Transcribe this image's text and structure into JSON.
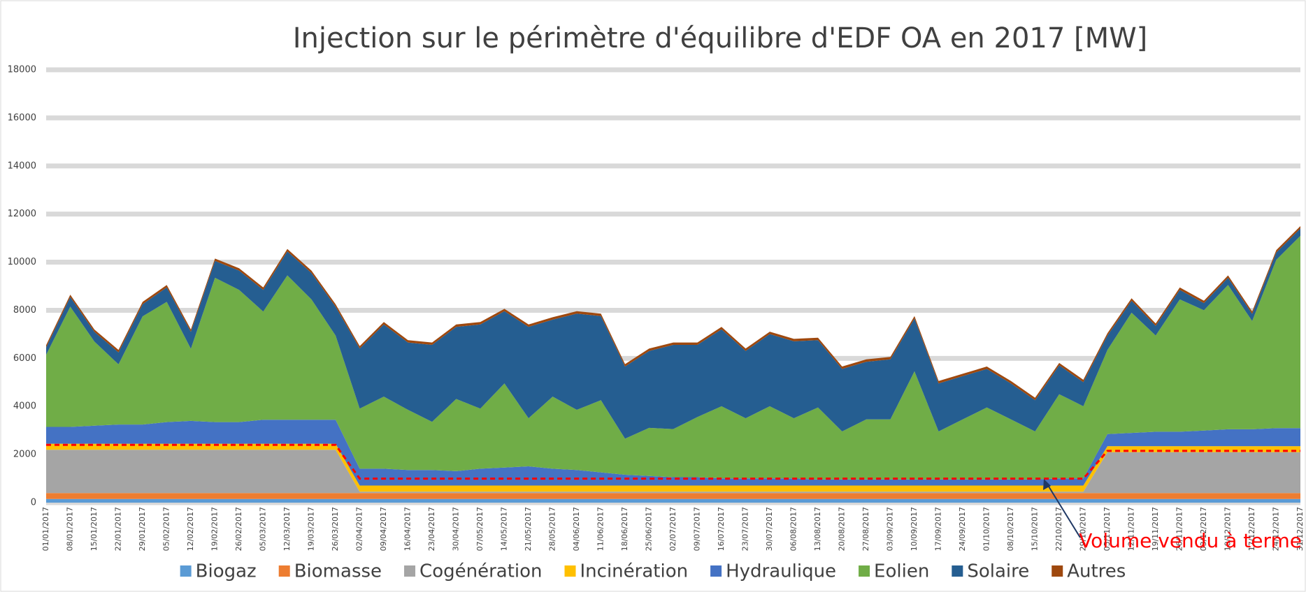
{
  "chart_data": {
    "type": "stacked_area",
    "title": "Injection sur le périmètre d'équilibre d'EDF OA en 2017 [MW]",
    "categories": [
      "01/01/2017",
      "08/01/2017",
      "15/01/2017",
      "22/01/2017",
      "29/01/2017",
      "05/02/2017",
      "12/02/2017",
      "19/02/2017",
      "26/02/2017",
      "05/03/2017",
      "12/03/2017",
      "19/03/2017",
      "26/03/2017",
      "02/04/2017",
      "09/04/2017",
      "16/04/2017",
      "23/04/2017",
      "30/04/2017",
      "07/05/2017",
      "14/05/2017",
      "21/05/2017",
      "28/05/2017",
      "04/06/2017",
      "11/06/2017",
      "18/06/2017",
      "25/06/2017",
      "02/07/2017",
      "09/07/2017",
      "16/07/2017",
      "23/07/2017",
      "30/07/2017",
      "06/08/2017",
      "13/08/2017",
      "20/08/2017",
      "27/08/2017",
      "03/09/2017",
      "10/09/2017",
      "17/09/2017",
      "24/09/2017",
      "01/10/2017",
      "08/10/2017",
      "15/10/2017",
      "22/10/2017",
      "29/10/2017",
      "05/11/2017",
      "12/11/2017",
      "19/11/2017",
      "26/11/2017",
      "03/12/2017",
      "10/12/2017",
      "17/12/2017",
      "24/12/2017",
      "31/12/2017"
    ],
    "series": [
      {
        "name": "Biogaz",
        "color": "#5b9bd5",
        "values": [
          150,
          150,
          150,
          150,
          150,
          150,
          150,
          150,
          150,
          150,
          150,
          150,
          150,
          150,
          150,
          150,
          150,
          150,
          150,
          150,
          150,
          150,
          150,
          150,
          150,
          150,
          150,
          150,
          150,
          150,
          150,
          150,
          150,
          150,
          150,
          150,
          150,
          150,
          150,
          150,
          150,
          150,
          150,
          150,
          150,
          150,
          150,
          150,
          150,
          150,
          150,
          150,
          150
        ]
      },
      {
        "name": "Biomasse",
        "color": "#ed7d31",
        "values": [
          250,
          250,
          250,
          250,
          250,
          250,
          250,
          250,
          250,
          250,
          250,
          250,
          250,
          250,
          250,
          250,
          250,
          250,
          250,
          250,
          250,
          250,
          250,
          250,
          250,
          250,
          250,
          250,
          250,
          250,
          250,
          250,
          250,
          250,
          250,
          250,
          250,
          250,
          250,
          250,
          250,
          250,
          250,
          250,
          250,
          250,
          250,
          250,
          250,
          250,
          250,
          250,
          250
        ]
      },
      {
        "name": "Cogénération",
        "color": "#a5a5a5",
        "values": [
          1800,
          1800,
          1800,
          1800,
          1800,
          1800,
          1800,
          1800,
          1800,
          1800,
          1800,
          1800,
          1800,
          60,
          60,
          60,
          60,
          60,
          60,
          60,
          60,
          60,
          60,
          60,
          60,
          60,
          60,
          60,
          60,
          60,
          60,
          60,
          60,
          60,
          60,
          60,
          60,
          60,
          60,
          60,
          60,
          60,
          60,
          60,
          1700,
          1700,
          1700,
          1700,
          1700,
          1700,
          1700,
          1700,
          1700
        ]
      },
      {
        "name": "Incinération",
        "color": "#ffc000",
        "values": [
          250,
          250,
          250,
          250,
          250,
          250,
          250,
          250,
          250,
          250,
          250,
          250,
          250,
          250,
          250,
          250,
          250,
          250,
          250,
          250,
          250,
          250,
          250,
          250,
          250,
          250,
          250,
          250,
          250,
          250,
          250,
          250,
          250,
          250,
          250,
          250,
          250,
          250,
          250,
          250,
          250,
          250,
          250,
          250,
          250,
          250,
          250,
          250,
          250,
          250,
          250,
          250,
          250
        ]
      },
      {
        "name": "Hydraulique",
        "color": "#4472c4",
        "values": [
          700,
          700,
          750,
          800,
          800,
          900,
          950,
          900,
          900,
          1000,
          1000,
          1000,
          1000,
          700,
          700,
          650,
          650,
          600,
          700,
          750,
          800,
          700,
          650,
          550,
          450,
          400,
          350,
          350,
          300,
          300,
          300,
          300,
          250,
          250,
          250,
          250,
          250,
          250,
          250,
          250,
          250,
          250,
          300,
          300,
          500,
          550,
          600,
          600,
          650,
          700,
          700,
          750,
          750
        ]
      },
      {
        "name": "Eolien",
        "color": "#70ad47",
        "values": [
          3000,
          5000,
          3500,
          2500,
          4500,
          5000,
          3000,
          6000,
          5500,
          4500,
          6000,
          5000,
          3500,
          2500,
          3000,
          2500,
          2000,
          3000,
          2500,
          3500,
          2000,
          3000,
          2500,
          3000,
          1500,
          2000,
          2000,
          2500,
          3000,
          2500,
          3000,
          2500,
          3000,
          2000,
          2500,
          2500,
          4500,
          2000,
          2500,
          3000,
          2500,
          2000,
          3500,
          3000,
          3500,
          5000,
          4000,
          5500,
          5000,
          6000,
          4500,
          7000,
          8000
        ]
      },
      {
        "name": "Solaire",
        "color": "#255e91",
        "values": [
          300,
          400,
          400,
          500,
          500,
          600,
          700,
          700,
          800,
          900,
          1000,
          1100,
          1200,
          2500,
          3000,
          2800,
          3200,
          3000,
          3500,
          3000,
          3800,
          3200,
          4000,
          3500,
          3000,
          3200,
          3500,
          3000,
          3200,
          2800,
          3000,
          3200,
          2800,
          2600,
          2400,
          2500,
          2200,
          2000,
          1800,
          1600,
          1500,
          1300,
          1200,
          1000,
          600,
          500,
          400,
          400,
          300,
          300,
          300,
          300,
          300
        ]
      },
      {
        "name": "Autres",
        "color": "#9e480e",
        "values": [
          100,
          100,
          100,
          100,
          100,
          100,
          100,
          100,
          100,
          100,
          100,
          100,
          100,
          100,
          100,
          100,
          100,
          100,
          100,
          100,
          100,
          100,
          100,
          100,
          100,
          100,
          100,
          100,
          100,
          100,
          100,
          100,
          100,
          100,
          100,
          100,
          100,
          100,
          100,
          100,
          100,
          100,
          100,
          100,
          100,
          100,
          100,
          100,
          100,
          100,
          100,
          100,
          100
        ]
      }
    ],
    "forward_volume": {
      "label": "Volume vendu à terme",
      "color": "#ff0000",
      "values": [
        2400,
        2400,
        2400,
        2400,
        2400,
        2400,
        2400,
        2400,
        2400,
        2400,
        2400,
        2400,
        2400,
        1000,
        1000,
        1000,
        1000,
        1000,
        1000,
        1000,
        1000,
        1000,
        1000,
        1000,
        1000,
        1000,
        1000,
        1000,
        1000,
        1000,
        1000,
        1000,
        1000,
        1000,
        1000,
        1000,
        1000,
        1000,
        1000,
        1000,
        1000,
        1000,
        1000,
        1000,
        2150,
        2150,
        2150,
        2150,
        2150,
        2150,
        2150,
        2150,
        2150
      ]
    },
    "ylim": [
      0,
      18000
    ],
    "yticks": [
      0,
      2000,
      4000,
      6000,
      8000,
      10000,
      12000,
      14000,
      16000,
      18000
    ],
    "grid": true,
    "legend": "bottom"
  }
}
